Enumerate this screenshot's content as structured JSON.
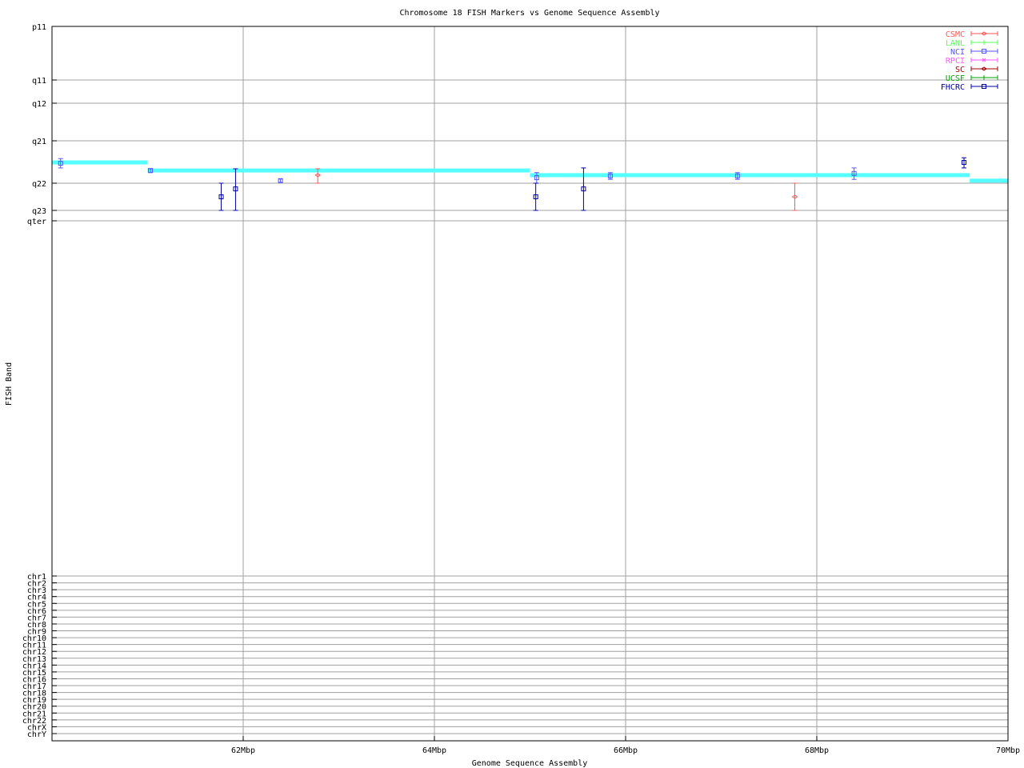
{
  "chart_data": {
    "type": "scatter",
    "title": "Chromosome 18 FISH Markers vs Genome Sequence Assembly",
    "xlabel": "Genome Sequence Assembly",
    "ylabel": "FISH Band",
    "xlim": [
      60,
      70
    ],
    "x_unit": "Mbp",
    "xticks": [
      {
        "value": 62,
        "label": "62Mbp"
      },
      {
        "value": 64,
        "label": "64Mbp"
      },
      {
        "value": 66,
        "label": "66Mbp"
      },
      {
        "value": 68,
        "label": "68Mbp"
      },
      {
        "value": 70,
        "label": "70Mbp"
      }
    ],
    "y_band_ticks": [
      {
        "value": 0,
        "label": "p11"
      },
      {
        "value": 1,
        "label": "q11"
      },
      {
        "value": 2,
        "label": "q12"
      },
      {
        "value": 3,
        "label": "q21"
      },
      {
        "value": 4,
        "label": "q22"
      },
      {
        "value": 5,
        "label": "q23"
      },
      {
        "value": 6,
        "label": "qter"
      }
    ],
    "y_chr_ticks": [
      "chr1",
      "chr2",
      "chr3",
      "chr4",
      "chr5",
      "chr6",
      "chr7",
      "chr8",
      "chr9",
      "chr10",
      "chr11",
      "chr12",
      "chr13",
      "chr14",
      "chr15",
      "chr16",
      "chr17",
      "chr18",
      "chr19",
      "chr20",
      "chr21",
      "chr22",
      "chrX",
      "chrY"
    ],
    "grid": true,
    "legend_position": "top-right",
    "legend": [
      {
        "name": "CSMC",
        "color": "#ff5555",
        "marker": "diamond"
      },
      {
        "name": "LANL",
        "color": "#55ff55",
        "marker": "plus"
      },
      {
        "name": "NCI",
        "color": "#5555ff",
        "marker": "square"
      },
      {
        "name": "RPCI",
        "color": "#ff55ff",
        "marker": "cross"
      },
      {
        "name": "SC",
        "color": "#a00000",
        "marker": "diamond"
      },
      {
        "name": "UCSF",
        "color": "#00a000",
        "marker": "plus"
      },
      {
        "name": "FHCRC",
        "color": "#0000a0",
        "marker": "square"
      }
    ],
    "assembly_segments": {
      "color": "#55ffff",
      "segments": [
        {
          "x0": 60.0,
          "x1": 61.0,
          "y": 3.51
        },
        {
          "x0": 61.0,
          "x1": 65.0,
          "y": 3.7
        },
        {
          "x0": 65.0,
          "x1": 69.6,
          "y": 3.81
        },
        {
          "x0": 69.6,
          "x1": 70.0,
          "y": 3.94
        }
      ]
    },
    "points": [
      {
        "source": "NCI",
        "x": 60.09,
        "y": 3.53,
        "ylow": 3.42,
        "yhigh": 3.64
      },
      {
        "source": "NCI",
        "x": 61.03,
        "y": 3.7,
        "ylow": 3.66,
        "yhigh": 3.75
      },
      {
        "source": "FHCRC",
        "x": 61.77,
        "y": 4.5,
        "ylow": 4.0,
        "yhigh": 5.0
      },
      {
        "source": "FHCRC",
        "x": 61.92,
        "y": 4.21,
        "ylow": 3.66,
        "yhigh": 5.0
      },
      {
        "source": "NCI",
        "x": 62.39,
        "y": 3.94,
        "ylow": 3.9,
        "yhigh": 3.98
      },
      {
        "source": "CSMC",
        "x": 62.78,
        "y": 3.81,
        "ylow": 3.66,
        "yhigh": 4.0
      },
      {
        "source": "NCI",
        "x": 65.07,
        "y": 3.87,
        "ylow": 3.75,
        "yhigh": 4.0
      },
      {
        "source": "FHCRC",
        "x": 65.06,
        "y": 4.5,
        "ylow": 4.0,
        "yhigh": 5.0
      },
      {
        "source": "FHCRC",
        "x": 65.56,
        "y": 4.21,
        "ylow": 3.64,
        "yhigh": 5.0
      },
      {
        "source": "NCI",
        "x": 65.84,
        "y": 3.83,
        "ylow": 3.75,
        "yhigh": 3.91
      },
      {
        "source": "NCI",
        "x": 67.17,
        "y": 3.83,
        "ylow": 3.75,
        "yhigh": 3.91
      },
      {
        "source": "CSMC",
        "x": 67.77,
        "y": 4.5,
        "ylow": 4.0,
        "yhigh": 5.0
      },
      {
        "source": "NCI",
        "x": 68.39,
        "y": 3.77,
        "ylow": 3.64,
        "yhigh": 3.91
      },
      {
        "source": "FHCRC",
        "x": 69.54,
        "y": 3.51,
        "ylow": 3.4,
        "yhigh": 3.64
      }
    ]
  }
}
